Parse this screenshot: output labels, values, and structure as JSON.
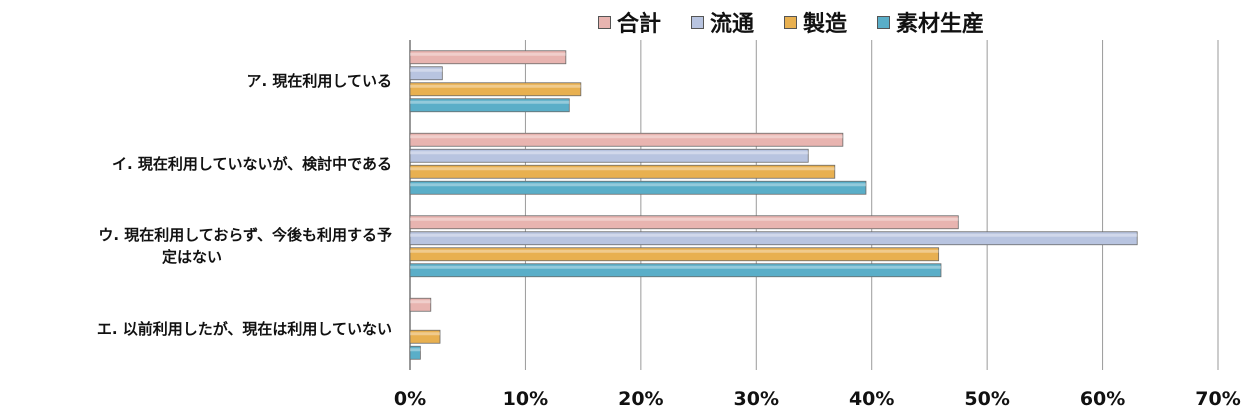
{
  "chart_data": {
    "type": "bar",
    "orientation": "horizontal",
    "categories": [
      "ア. 現在利用している",
      "イ. 現在利用していないが、検討中である",
      "ウ. 現在利用しておらず、今後も利用する予定はない",
      "エ. 以前利用したが、現在は利用していない"
    ],
    "category_lines": [
      [
        "ア. 現在利用している"
      ],
      [
        "イ. 現在利用していないが、検討中である"
      ],
      [
        "ウ. 現在利用しておらず、今後も利用する予",
        "定はない"
      ],
      [
        "エ. 以前利用したが、現在は利用していない"
      ]
    ],
    "series": [
      {
        "name": "合計",
        "color": "#e8b4b0",
        "values": [
          13.5,
          37.5,
          47.5,
          1.8
        ]
      },
      {
        "name": "流通",
        "color": "#b8c4e0",
        "values": [
          2.8,
          34.5,
          63.0,
          0.0
        ]
      },
      {
        "name": "製造",
        "color": "#e8b050",
        "values": [
          14.8,
          36.8,
          45.8,
          2.6
        ]
      },
      {
        "name": "素材生産",
        "color": "#5aaec8",
        "values": [
          13.8,
          39.5,
          46.0,
          0.9
        ]
      }
    ],
    "xlim": [
      0,
      70
    ],
    "xticks": [
      "0%",
      "10%",
      "20%",
      "30%",
      "40%",
      "50%",
      "60%",
      "70%"
    ],
    "grid": true,
    "legend_position": "top"
  }
}
